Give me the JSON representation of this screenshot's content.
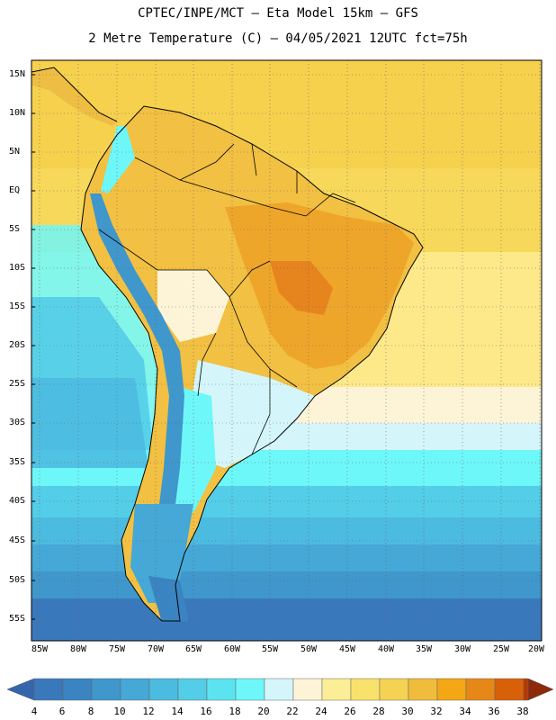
{
  "title": {
    "line1": "CPTEC/INPE/MCT –  Eta Model 15km – GFS",
    "line2": "2 Metre Temperature (C) – 04/05/2021 12UTC fct=75h"
  },
  "map": {
    "lat_labels": [
      "15N",
      "10N",
      "5N",
      "EQ",
      "5S",
      "10S",
      "15S",
      "20S",
      "25S",
      "30S",
      "35S",
      "40S",
      "45S",
      "50S",
      "55S"
    ],
    "lon_labels": [
      "85W",
      "80W",
      "75W",
      "70W",
      "65W",
      "60W",
      "55W",
      "50W",
      "45W",
      "40W",
      "35W",
      "30W",
      "25W",
      "20W"
    ],
    "ocean_color": "#f2d54e",
    "coast_color": "#000000"
  },
  "colorbar": {
    "values": [
      "4",
      "6",
      "8",
      "10",
      "12",
      "14",
      "16",
      "18",
      "20",
      "22",
      "24",
      "26",
      "28",
      "30",
      "32",
      "34",
      "36",
      "38"
    ],
    "colors": [
      "#3a78bc",
      "#3a84c2",
      "#3f97cc",
      "#45a8d6",
      "#4cbbe0",
      "#53cde8",
      "#5ce3f0",
      "#6ef7f9",
      "#d4f6fb",
      "#fdf4d8",
      "#fbee96",
      "#f9e26b",
      "#f5d252",
      "#f0bc3c",
      "#f3a714",
      "#e68818",
      "#d86008",
      "#b83800"
    ],
    "left_tip_color": "#3566ad",
    "right_tip_color": "#8c2a0a"
  }
}
